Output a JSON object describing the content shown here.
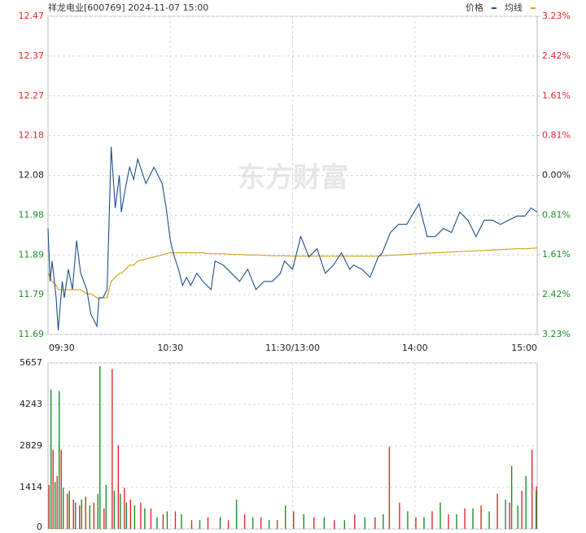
{
  "chart_data": [
    {
      "type": "line",
      "title": "祥龙电业[600769] 2024-11-07 15:00",
      "watermark": "东方财富",
      "up_color": "#e0282c",
      "down_color": "#1a8f2a",
      "flat_color": "#222222",
      "xlim": [
        0,
        240
      ],
      "xticks": [
        {
          "value": 0,
          "label": "09:30"
        },
        {
          "value": 60,
          "label": "10:30"
        },
        {
          "value": 120,
          "label": "11:30/13:00"
        },
        {
          "value": 180,
          "label": "14:00"
        },
        {
          "value": 240,
          "label": "15:00"
        }
      ],
      "ylim": [
        11.69,
        12.47
      ],
      "yticks": [
        {
          "value": 12.47,
          "label": "12.47"
        },
        {
          "value": 12.3725,
          "label": "12.37"
        },
        {
          "value": 12.275,
          "label": "12.27"
        },
        {
          "value": 12.1775,
          "label": "12.18"
        },
        {
          "value": 12.08,
          "label": "12.08"
        },
        {
          "value": 11.9825,
          "label": "11.98"
        },
        {
          "value": 11.885,
          "label": "11.89"
        },
        {
          "value": 11.7875,
          "label": "11.79"
        },
        {
          "value": 11.69,
          "label": "11.69"
        }
      ],
      "y2lim": [
        -3.23,
        3.23
      ],
      "y2ticks": [
        {
          "value": 3.23,
          "label": "3.23%"
        },
        {
          "value": 2.42,
          "label": "2.42%"
        },
        {
          "value": 1.61,
          "label": "1.61%"
        },
        {
          "value": 0.81,
          "label": "0.81%"
        },
        {
          "value": 0,
          "label": "0.00%"
        },
        {
          "value": -0.81,
          "label": "0.81%"
        },
        {
          "value": -1.61,
          "label": "1.61%"
        },
        {
          "value": -2.42,
          "label": "2.42%"
        },
        {
          "value": -3.23,
          "label": "3.23%"
        }
      ],
      "grid": true,
      "x": [
        0,
        1,
        2,
        4,
        5,
        7,
        8,
        10,
        12,
        14,
        16,
        19,
        21,
        24,
        25,
        27,
        29,
        31,
        33,
        35,
        36,
        38,
        40,
        42,
        44,
        48,
        52,
        56,
        58,
        60,
        62,
        64,
        66,
        68,
        70,
        73,
        76,
        80,
        82,
        86,
        90,
        94,
        98,
        102,
        106,
        110,
        114,
        116,
        120,
        124,
        128,
        132,
        136,
        140,
        144,
        148,
        150,
        154,
        158,
        162,
        164,
        168,
        172,
        176,
        182,
        186,
        190,
        194,
        198,
        202,
        206,
        210,
        214,
        218,
        222,
        226,
        230,
        234,
        237,
        240
      ],
      "series": [
        {
          "name": "价格",
          "color": "#1f4e8c",
          "values": [
            11.95,
            11.82,
            11.87,
            11.78,
            11.7,
            11.82,
            11.78,
            11.85,
            11.8,
            11.92,
            11.84,
            11.8,
            11.74,
            11.71,
            11.78,
            11.78,
            11.8,
            12.15,
            12.0,
            12.08,
            11.99,
            12.05,
            12.1,
            12.07,
            12.12,
            12.06,
            12.1,
            12.06,
            12.0,
            11.92,
            11.88,
            11.85,
            11.81,
            11.83,
            11.81,
            11.84,
            11.82,
            11.8,
            11.87,
            11.86,
            11.84,
            11.82,
            11.85,
            11.8,
            11.82,
            11.82,
            11.84,
            11.87,
            11.85,
            11.93,
            11.88,
            11.9,
            11.84,
            11.86,
            11.89,
            11.85,
            11.86,
            11.85,
            11.83,
            11.88,
            11.89,
            11.94,
            11.96,
            11.96,
            12.01,
            11.93,
            11.93,
            11.95,
            11.94,
            11.99,
            11.97,
            11.93,
            11.97,
            11.97,
            11.96,
            11.97,
            11.98,
            11.98,
            12.0,
            11.99
          ]
        },
        {
          "name": "均线",
          "color": "#d4a017",
          "values": [
            11.84,
            11.83,
            11.82,
            11.81,
            11.8,
            11.8,
            11.8,
            11.8,
            11.8,
            11.8,
            11.8,
            11.79,
            11.79,
            11.78,
            11.78,
            11.78,
            11.78,
            11.82,
            11.83,
            11.84,
            11.84,
            11.85,
            11.86,
            11.86,
            11.87,
            11.875,
            11.88,
            11.885,
            11.888,
            11.89,
            11.89,
            11.89,
            11.89,
            11.89,
            11.89,
            11.89,
            11.89,
            11.888,
            11.888,
            11.888,
            11.886,
            11.886,
            11.885,
            11.885,
            11.884,
            11.883,
            11.883,
            11.883,
            11.882,
            11.882,
            11.882,
            11.882,
            11.882,
            11.882,
            11.882,
            11.882,
            11.882,
            11.882,
            11.882,
            11.882,
            11.883,
            11.884,
            11.885,
            11.886,
            11.888,
            11.889,
            11.89,
            11.891,
            11.892,
            11.893,
            11.894,
            11.895,
            11.896,
            11.897,
            11.898,
            11.899,
            11.9,
            11.9,
            11.901,
            11.902
          ]
        }
      ]
    },
    {
      "type": "volume",
      "xlim": [
        0,
        240
      ],
      "ylim": [
        0,
        5657
      ],
      "yticks": [
        0,
        1414,
        2829,
        4243,
        5657
      ],
      "grid": true,
      "series": [
        {
          "color": "#e0282c",
          "x": [
            0,
            2,
            4,
            6,
            9,
            12,
            15,
            18,
            22,
            27,
            31,
            34,
            37,
            40,
            45,
            50,
            56,
            62,
            70,
            78,
            88,
            96,
            104,
            112,
            120,
            130,
            140,
            150,
            160,
            167,
            172,
            180,
            188,
            196,
            204,
            212,
            220,
            226,
            232,
            237,
            240
          ],
          "values": [
            1500,
            2700,
            1800,
            2700,
            1200,
            1000,
            800,
            1100,
            900,
            700,
            5450,
            2850,
            1400,
            1000,
            900,
            700,
            500,
            600,
            300,
            400,
            300,
            500,
            400,
            300,
            600,
            400,
            300,
            500,
            400,
            2800,
            900,
            400,
            600,
            500,
            700,
            800,
            1200,
            900,
            1300,
            2700,
            1450
          ]
        },
        {
          "color": "#1a8f2a",
          "x": [
            1,
            3,
            5,
            7,
            10,
            13,
            16,
            20,
            24,
            25,
            28,
            32,
            35,
            38,
            42,
            47,
            53,
            58,
            65,
            74,
            84,
            92,
            100,
            108,
            116,
            125,
            135,
            145,
            155,
            164,
            176,
            184,
            192,
            200,
            208,
            216,
            224,
            227,
            230,
            234,
            239
          ],
          "values": [
            4750,
            1600,
            4700,
            1400,
            1300,
            900,
            1000,
            800,
            1200,
            5550,
            1500,
            1300,
            1200,
            900,
            800,
            700,
            400,
            600,
            500,
            300,
            400,
            1000,
            400,
            300,
            800,
            500,
            400,
            300,
            400,
            500,
            600,
            400,
            900,
            500,
            700,
            600,
            1000,
            2150,
            800,
            1800,
            1300
          ]
        }
      ]
    }
  ]
}
